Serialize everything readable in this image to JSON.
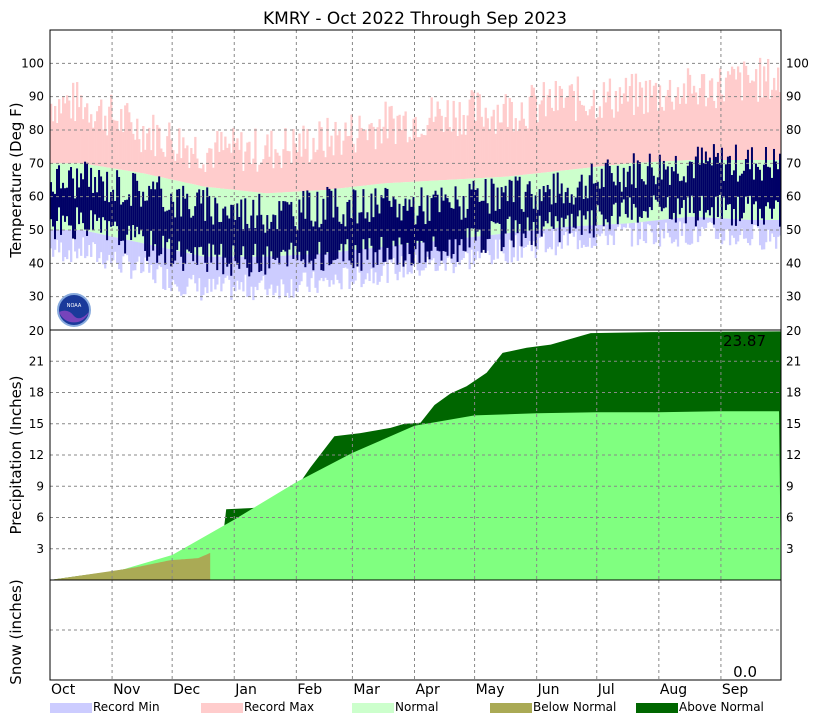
{
  "chart_data": {
    "type": "area",
    "title": "KMRY - Oct 2022 Through Sep 2023",
    "months": [
      "Oct",
      "Nov",
      "Dec",
      "Jan",
      "Feb",
      "Mar",
      "Apr",
      "May",
      "Jun",
      "Jul",
      "Aug",
      "Sep"
    ],
    "month_days": [
      31,
      30,
      31,
      31,
      28,
      31,
      30,
      31,
      30,
      31,
      31,
      30
    ],
    "grid": true,
    "panels": {
      "temperature": {
        "ylabel": "Temperature (Deg F)",
        "ylim": [
          20,
          110
        ],
        "ticks": [
          30,
          40,
          50,
          60,
          70,
          80,
          90,
          100
        ],
        "normal_high": [
          70,
          67,
          63,
          61,
          62,
          64,
          65,
          66,
          68,
          70,
          71,
          71
        ],
        "normal_low": [
          50,
          46,
          42,
          42,
          43,
          45,
          47,
          49,
          51,
          52,
          54,
          53
        ],
        "record_max": [
          88,
          80,
          74,
          74,
          77,
          82,
          85,
          86,
          89,
          90,
          92,
          95
        ],
        "record_min": [
          44,
          38,
          32,
          33,
          34,
          38,
          40,
          44,
          47,
          49,
          49,
          48
        ],
        "observed_high": [
          65,
          62,
          57,
          55,
          57,
          57,
          58,
          60,
          62,
          68,
          70,
          70
        ],
        "observed_low": [
          52,
          46,
          41,
          41,
          42,
          43,
          44,
          49,
          51,
          55,
          56,
          56
        ]
      },
      "precipitation": {
        "ylabel": "Precipitation (Inches)",
        "ylim": [
          0,
          24
        ],
        "ticks": [
          3,
          6,
          9,
          12,
          15,
          18,
          21
        ],
        "top_label": "20",
        "total_label": "23.87",
        "observed_cum": [
          [
            0,
            0
          ],
          [
            15,
            0.4
          ],
          [
            30,
            0.8
          ],
          [
            45,
            1.3
          ],
          [
            60,
            1.9
          ],
          [
            74,
            2.1
          ],
          [
            80,
            2.6
          ],
          [
            86,
            3.5
          ],
          [
            88,
            6.8
          ],
          [
            100,
            6.9
          ],
          [
            112,
            7.1
          ],
          [
            118,
            8.1
          ],
          [
            125,
            9.4
          ],
          [
            130,
            10.8
          ],
          [
            142,
            13.8
          ],
          [
            155,
            14.1
          ],
          [
            170,
            14.6
          ],
          [
            177,
            15.0
          ],
          [
            185,
            15.1
          ],
          [
            192,
            16.8
          ],
          [
            200,
            17.9
          ],
          [
            208,
            18.6
          ],
          [
            218,
            19.9
          ],
          [
            226,
            21.8
          ],
          [
            238,
            22.3
          ],
          [
            250,
            22.6
          ],
          [
            270,
            23.7
          ],
          [
            300,
            23.8
          ],
          [
            364,
            23.87
          ]
        ],
        "normal_cum": [
          [
            0,
            0
          ],
          [
            31,
            0.7
          ],
          [
            61,
            2.4
          ],
          [
            92,
            5.8
          ],
          [
            123,
            9.4
          ],
          [
            151,
            12.2
          ],
          [
            182,
            14.8
          ],
          [
            212,
            15.8
          ],
          [
            243,
            16.0
          ],
          [
            273,
            16.1
          ],
          [
            304,
            16.1
          ],
          [
            334,
            16.2
          ],
          [
            364,
            16.2
          ]
        ]
      },
      "snow": {
        "ylabel": "Snow (inches)",
        "total_label": "0.0"
      }
    },
    "legend": [
      {
        "label": "Record Min",
        "color": "#ccccff"
      },
      {
        "label": "Record Max",
        "color": "#ffcccc"
      },
      {
        "label": "Normal",
        "color": "#ccffcc"
      },
      {
        "label": "Below Normal",
        "color": "#aaaa55"
      },
      {
        "label": "Above Normal",
        "color": "#006600"
      }
    ],
    "colors": {
      "observed": "#000066",
      "normal_precip": "#80ff80",
      "above_normal": "#006600",
      "below_normal": "#aaaa55"
    },
    "logo": "NOAA"
  }
}
